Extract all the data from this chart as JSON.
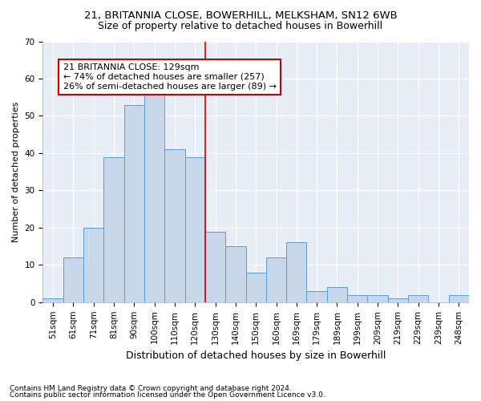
{
  "title1": "21, BRITANNIA CLOSE, BOWERHILL, MELKSHAM, SN12 6WB",
  "title2": "Size of property relative to detached houses in Bowerhill",
  "xlabel": "Distribution of detached houses by size in Bowerhill",
  "ylabel": "Number of detached properties",
  "bar_labels": [
    "51sqm",
    "61sqm",
    "71sqm",
    "81sqm",
    "90sqm",
    "100sqm",
    "110sqm",
    "120sqm",
    "130sqm",
    "140sqm",
    "150sqm",
    "160sqm",
    "169sqm",
    "179sqm",
    "189sqm",
    "199sqm",
    "209sqm",
    "219sqm",
    "229sqm",
    "239sqm",
    "248sqm"
  ],
  "bar_values": [
    1,
    12,
    20,
    39,
    53,
    57,
    41,
    39,
    19,
    15,
    8,
    12,
    16,
    3,
    4,
    2,
    2,
    1,
    2,
    0,
    2
  ],
  "bar_color": "#c8d8ea",
  "bar_edge_color": "#5b9bd5",
  "vline_x_index": 8,
  "vline_color": "#cc0000",
  "annotation_text": "21 BRITANNIA CLOSE: 129sqm\n← 74% of detached houses are smaller (257)\n26% of semi-detached houses are larger (89) →",
  "annotation_box_edge": "#cc0000",
  "ylim": [
    0,
    70
  ],
  "yticks": [
    0,
    10,
    20,
    30,
    40,
    50,
    60,
    70
  ],
  "footer1": "Contains HM Land Registry data © Crown copyright and database right 2024.",
  "footer2": "Contains public sector information licensed under the Open Government Licence v3.0.",
  "bg_color": "#ffffff",
  "plot_bg_color": "#e8eef6",
  "grid_color": "#ffffff",
  "title1_fontsize": 9.5,
  "title2_fontsize": 9,
  "ylabel_fontsize": 8,
  "xlabel_fontsize": 9,
  "tick_fontsize": 7.5,
  "footer_fontsize": 6.5,
  "annot_fontsize": 8
}
